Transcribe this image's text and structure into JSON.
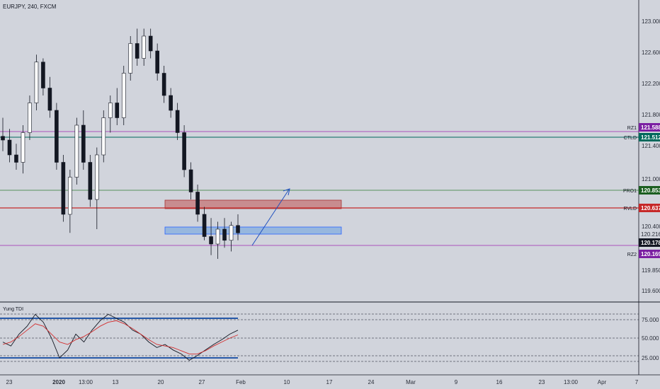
{
  "chart_data": {
    "type": "candlestick",
    "title": "EURJPY, 240, FXCM",
    "yticks": [
      "123.000",
      "122.600",
      "122.200",
      "121.800",
      "121.400",
      "121.000",
      "120.400",
      "119.850",
      "119.600"
    ],
    "xticks": [
      "23",
      "2020",
      "13:00",
      "13",
      "20",
      "27",
      "Feb",
      "10",
      "17",
      "24",
      "Mar",
      "9",
      "16",
      "23",
      "13:00",
      "Apr",
      "7"
    ],
    "indicator": {
      "name": "Yung TDI",
      "yticks": [
        "75.000",
        "50.000",
        "25.000"
      ]
    },
    "tags": [
      {
        "label": "RZ1",
        "value": "121.588",
        "color": "#7b1fa2"
      },
      {
        "label": "CTLD",
        "value": "121.512",
        "color": "#00695c"
      },
      {
        "label": "PRO1",
        "value": "120.853",
        "color": "#1b5e20"
      },
      {
        "label": "RVLD",
        "value": "120.637",
        "color": "#c62828"
      },
      {
        "label": "",
        "value": "120.216",
        "color": ""
      },
      {
        "label": "",
        "value": "120.178",
        "color": "#131722"
      },
      {
        "label": "RZ2",
        "value": "120.169",
        "color": "#7b1fa2"
      }
    ],
    "ohlc_series": [
      [
        121.45,
        121.7,
        121.25,
        121.4
      ],
      [
        121.4,
        121.55,
        121.1,
        121.2
      ],
      [
        121.2,
        121.35,
        121.0,
        121.1
      ],
      [
        121.1,
        121.6,
        120.95,
        121.5
      ],
      [
        121.5,
        122.0,
        121.4,
        121.9
      ],
      [
        121.9,
        122.55,
        121.8,
        122.45
      ],
      [
        122.45,
        122.5,
        122.0,
        122.1
      ],
      [
        122.1,
        122.25,
        121.7,
        121.8
      ],
      [
        121.8,
        121.9,
        121.0,
        121.1
      ],
      [
        121.1,
        121.2,
        120.3,
        120.4
      ],
      [
        120.4,
        121.0,
        120.15,
        120.9
      ],
      [
        120.9,
        121.7,
        120.8,
        121.6
      ],
      [
        121.6,
        121.8,
        121.0,
        121.1
      ],
      [
        121.1,
        121.2,
        120.5,
        120.6
      ],
      [
        120.6,
        121.3,
        120.2,
        121.2
      ],
      [
        121.2,
        121.8,
        121.1,
        121.7
      ],
      [
        121.7,
        122.0,
        121.5,
        121.9
      ],
      [
        121.9,
        122.1,
        121.6,
        121.7
      ],
      [
        121.7,
        122.4,
        121.6,
        122.3
      ],
      [
        122.3,
        122.8,
        122.2,
        122.7
      ],
      [
        122.7,
        122.9,
        122.4,
        122.5
      ],
      [
        122.5,
        122.9,
        122.4,
        122.8
      ],
      [
        122.8,
        122.9,
        122.5,
        122.6
      ],
      [
        122.6,
        122.7,
        122.2,
        122.3
      ],
      [
        122.3,
        122.4,
        121.9,
        122.0
      ],
      [
        122.0,
        122.1,
        121.7,
        121.8
      ],
      [
        121.8,
        121.9,
        121.4,
        121.5
      ],
      [
        121.5,
        121.6,
        120.9,
        121.0
      ],
      [
        121.0,
        121.1,
        120.6,
        120.7
      ],
      [
        120.7,
        120.8,
        120.3,
        120.4
      ],
      [
        120.4,
        120.5,
        120.05,
        120.1
      ],
      [
        120.1,
        120.35,
        119.85,
        120.0
      ],
      [
        120.0,
        120.3,
        119.8,
        120.2
      ],
      [
        120.2,
        120.35,
        119.95,
        120.05
      ],
      [
        120.05,
        120.3,
        119.9,
        120.25
      ],
      [
        120.25,
        120.4,
        120.05,
        120.15
      ]
    ],
    "tdi_series": {
      "rsi": [
        45,
        40,
        55,
        65,
        80,
        70,
        50,
        25,
        35,
        55,
        45,
        60,
        72,
        80,
        75,
        70,
        60,
        55,
        45,
        38,
        42,
        35,
        30,
        22,
        28,
        35,
        42,
        48,
        55,
        60
      ],
      "signal": [
        42,
        45,
        52,
        60,
        68,
        65,
        55,
        45,
        42,
        48,
        52,
        58,
        65,
        70,
        72,
        68,
        62,
        55,
        48,
        42,
        40,
        38,
        34,
        30,
        30,
        34,
        40,
        45,
        50,
        54
      ]
    }
  }
}
